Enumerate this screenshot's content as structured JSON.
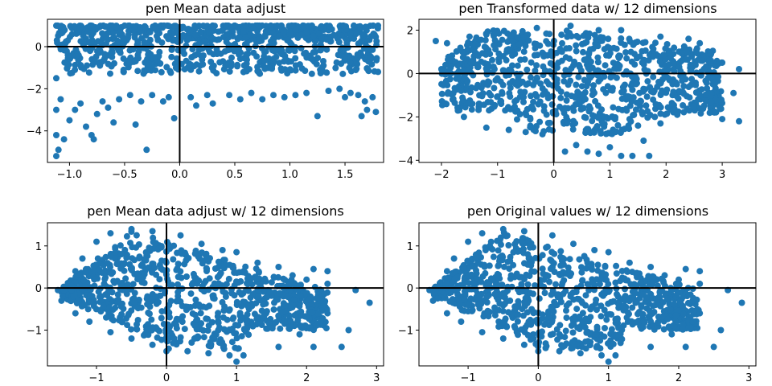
{
  "colors": {
    "points": "#1f77b4",
    "axes": "#000000",
    "background": "#ffffff"
  },
  "chart_data": [
    {
      "type": "scatter",
      "title": "pen Mean data adjust",
      "xlim": [
        -1.2,
        1.85
      ],
      "ylim": [
        -5.5,
        1.3
      ],
      "xticks": [
        -1.0,
        -0.5,
        0.0,
        0.5,
        1.0,
        1.5
      ],
      "xtick_labels": [
        "−1.0",
        "−0.5",
        "0.0",
        "0.5",
        "1.0",
        "1.5"
      ],
      "yticks": [
        -4,
        -2,
        0
      ],
      "ytick_labels": [
        "−4",
        "−2",
        "0"
      ],
      "grid": false,
      "reference_lines": {
        "x": 0,
        "y": 0
      },
      "series": [
        {
          "values_note": "dense band",
          "points": [
            [
              -1.12,
              1.0
            ],
            [
              -1.12,
              -1.5
            ],
            [
              -1.12,
              -3.0
            ],
            [
              -1.12,
              -4.2
            ],
            [
              -1.12,
              -5.2
            ],
            [
              -1.1,
              -4.9
            ],
            [
              -1.08,
              -2.5
            ],
            [
              -1.05,
              -4.4
            ],
            [
              -1.0,
              -3.5
            ],
            [
              -0.95,
              -3.0
            ],
            [
              -0.9,
              -2.7
            ],
            [
              -0.85,
              -3.8
            ],
            [
              -0.8,
              -4.2
            ],
            [
              -0.78,
              -4.4
            ],
            [
              -0.75,
              -3.2
            ],
            [
              -0.7,
              -2.6
            ],
            [
              -0.65,
              -2.9
            ],
            [
              -0.6,
              -3.6
            ],
            [
              -0.55,
              -2.5
            ],
            [
              -0.45,
              -2.3
            ],
            [
              -0.4,
              -3.7
            ],
            [
              -0.35,
              -2.6
            ],
            [
              -0.3,
              -4.9
            ],
            [
              -0.25,
              -2.3
            ],
            [
              -0.15,
              -2.6
            ],
            [
              -0.1,
              -2.4
            ],
            [
              -0.05,
              -3.4
            ],
            [
              0.1,
              -2.4
            ],
            [
              0.15,
              -2.8
            ],
            [
              0.25,
              -2.3
            ],
            [
              0.3,
              -2.7
            ],
            [
              0.45,
              -2.3
            ],
            [
              0.55,
              -2.5
            ],
            [
              0.65,
              -2.2
            ],
            [
              0.75,
              -2.5
            ],
            [
              0.85,
              -2.3
            ],
            [
              0.95,
              -2.4
            ],
            [
              1.05,
              -2.3
            ],
            [
              1.15,
              -2.2
            ],
            [
              1.25,
              -3.3
            ],
            [
              1.35,
              -2.1
            ],
            [
              1.45,
              -2.0
            ],
            [
              1.5,
              -2.4
            ],
            [
              1.55,
              -2.2
            ],
            [
              1.62,
              -2.3
            ],
            [
              1.65,
              -3.3
            ],
            [
              1.68,
              -2.6
            ],
            [
              1.7,
              -3.0
            ],
            [
              1.75,
              -2.4
            ],
            [
              1.78,
              -3.1
            ],
            [
              1.8,
              -1.2
            ],
            [
              1.8,
              1.0
            ],
            [
              -0.5,
              1.0
            ],
            [
              0.5,
              1.0
            ],
            [
              1.2,
              1.0
            ]
          ]
        }
      ]
    },
    {
      "type": "scatter",
      "title": "pen Transformed data w/ 12 dimensions",
      "xlim": [
        -2.4,
        3.6
      ],
      "ylim": [
        -4.1,
        2.5
      ],
      "xticks": [
        -2,
        -1,
        0,
        1,
        2,
        3
      ],
      "xtick_labels": [
        "−2",
        "−1",
        "0",
        "1",
        "2",
        "3"
      ],
      "yticks": [
        -4,
        -2,
        0,
        2
      ],
      "ytick_labels": [
        "−4",
        "−2",
        "0",
        "2"
      ],
      "grid": false,
      "reference_lines": {
        "x": 0,
        "y": 0
      },
      "series": [
        {
          "points": [
            [
              -2.1,
              1.5
            ],
            [
              -1.9,
              1.4
            ],
            [
              -2.0,
              0.2
            ],
            [
              -1.8,
              -1.2
            ],
            [
              -1.6,
              -2.0
            ],
            [
              -1.5,
              1.7
            ],
            [
              -1.2,
              -2.5
            ],
            [
              -0.8,
              -2.6
            ],
            [
              -0.5,
              -2.7
            ],
            [
              -0.2,
              -2.8
            ],
            [
              0.2,
              -3.6
            ],
            [
              0.4,
              -3.3
            ],
            [
              0.6,
              -3.6
            ],
            [
              0.8,
              -3.7
            ],
            [
              1.0,
              -3.4
            ],
            [
              1.1,
              -2.7
            ],
            [
              1.2,
              -3.8
            ],
            [
              1.4,
              -3.8
            ],
            [
              1.5,
              -2.4
            ],
            [
              1.6,
              -3.1
            ],
            [
              1.7,
              -3.8
            ],
            [
              1.9,
              -2.3
            ],
            [
              0.3,
              2.2
            ],
            [
              0.8,
              2.0
            ],
            [
              1.2,
              2.0
            ],
            [
              1.9,
              1.7
            ],
            [
              2.4,
              1.6
            ],
            [
              2.6,
              1.4
            ],
            [
              2.8,
              0.9
            ],
            [
              3.0,
              0.5
            ],
            [
              3.3,
              0.2
            ],
            [
              3.2,
              -0.9
            ],
            [
              3.3,
              -2.2
            ],
            [
              3.0,
              -2.1
            ],
            [
              2.8,
              -1.3
            ],
            [
              2.6,
              -1.0
            ],
            [
              2.2,
              -1.9
            ],
            [
              1.8,
              -2.0
            ],
            [
              -0.3,
              2.1
            ],
            [
              -1.2,
              1.8
            ]
          ]
        }
      ]
    },
    {
      "type": "scatter",
      "title": "pen Mean data adjust w/ 12 dimensions",
      "xlim": [
        -1.7,
        3.1
      ],
      "ylim": [
        -1.85,
        1.55
      ],
      "xticks": [
        -1,
        0,
        1,
        2,
        3
      ],
      "xtick_labels": [
        "−1",
        "0",
        "1",
        "2",
        "3"
      ],
      "yticks": [
        -1,
        0,
        1
      ],
      "ytick_labels": [
        "−1",
        "0",
        "1"
      ],
      "grid": false,
      "reference_lines": {
        "x": 0,
        "y": 0
      },
      "series": [
        {
          "points": [
            [
              -1.55,
              -0.05
            ],
            [
              -1.5,
              -0.3
            ],
            [
              -1.3,
              0.4
            ],
            [
              -1.2,
              0.7
            ],
            [
              -1.0,
              1.1
            ],
            [
              -0.8,
              1.3
            ],
            [
              -0.5,
              1.4
            ],
            [
              -0.2,
              1.35
            ],
            [
              0.2,
              1.25
            ],
            [
              0.5,
              1.05
            ],
            [
              0.8,
              0.9
            ],
            [
              1.0,
              0.85
            ],
            [
              1.3,
              0.6
            ],
            [
              1.6,
              0.5
            ],
            [
              1.8,
              0.3
            ],
            [
              2.0,
              0.2
            ],
            [
              2.3,
              0.1
            ],
            [
              2.2,
              -0.3
            ],
            [
              2.3,
              -0.6
            ],
            [
              2.2,
              -0.8
            ],
            [
              2.1,
              -1.4
            ],
            [
              2.5,
              -1.4
            ],
            [
              2.6,
              -1.0
            ],
            [
              2.7,
              -0.05
            ],
            [
              2.9,
              -0.35
            ],
            [
              1.6,
              -1.4
            ],
            [
              1.1,
              -1.6
            ],
            [
              1.0,
              -1.75
            ],
            [
              0.9,
              -1.6
            ],
            [
              0.6,
              -1.55
            ],
            [
              0.3,
              -1.5
            ],
            [
              0.0,
              -1.5
            ],
            [
              -0.2,
              -1.35
            ],
            [
              -0.5,
              -1.2
            ],
            [
              -0.8,
              -1.05
            ],
            [
              -1.1,
              -0.8
            ],
            [
              -1.3,
              -0.6
            ],
            [
              2.3,
              0.4
            ],
            [
              2.1,
              0.45
            ],
            [
              1.9,
              -1.1
            ]
          ]
        }
      ]
    },
    {
      "type": "scatter",
      "title": "pen Original values w/ 12 dimensions",
      "xlim": [
        -1.7,
        3.1
      ],
      "ylim": [
        -1.85,
        1.55
      ],
      "xticks": [
        -1,
        0,
        1,
        2,
        3
      ],
      "xtick_labels": [
        "−1",
        "0",
        "1",
        "2",
        "3"
      ],
      "yticks": [
        -1,
        0,
        1
      ],
      "ytick_labels": [
        "−1",
        "0",
        "1"
      ],
      "grid": false,
      "reference_lines": {
        "x": 0,
        "y": 0
      },
      "series": [
        {
          "points": [
            [
              -1.55,
              -0.05
            ],
            [
              -1.5,
              -0.3
            ],
            [
              -1.3,
              0.4
            ],
            [
              -1.2,
              0.7
            ],
            [
              -1.0,
              1.1
            ],
            [
              -0.8,
              1.3
            ],
            [
              -0.5,
              1.4
            ],
            [
              -0.2,
              1.35
            ],
            [
              0.2,
              1.25
            ],
            [
              0.5,
              1.05
            ],
            [
              0.8,
              0.9
            ],
            [
              1.0,
              0.85
            ],
            [
              1.3,
              0.6
            ],
            [
              1.6,
              0.5
            ],
            [
              1.8,
              0.3
            ],
            [
              2.0,
              0.2
            ],
            [
              2.3,
              0.1
            ],
            [
              2.2,
              -0.3
            ],
            [
              2.3,
              -0.6
            ],
            [
              2.2,
              -0.8
            ],
            [
              2.1,
              -1.4
            ],
            [
              2.5,
              -1.4
            ],
            [
              2.6,
              -1.0
            ],
            [
              2.7,
              -0.05
            ],
            [
              2.9,
              -0.35
            ],
            [
              1.6,
              -1.4
            ],
            [
              1.1,
              -1.6
            ],
            [
              1.0,
              -1.75
            ],
            [
              0.9,
              -1.6
            ],
            [
              0.6,
              -1.55
            ],
            [
              0.3,
              -1.5
            ],
            [
              0.0,
              -1.5
            ],
            [
              -0.2,
              -1.35
            ],
            [
              -0.5,
              -1.2
            ],
            [
              -0.8,
              -1.05
            ],
            [
              -1.1,
              -0.8
            ],
            [
              -1.3,
              -0.6
            ],
            [
              2.3,
              0.4
            ],
            [
              2.1,
              0.45
            ],
            [
              1.9,
              -1.1
            ]
          ]
        }
      ]
    }
  ]
}
